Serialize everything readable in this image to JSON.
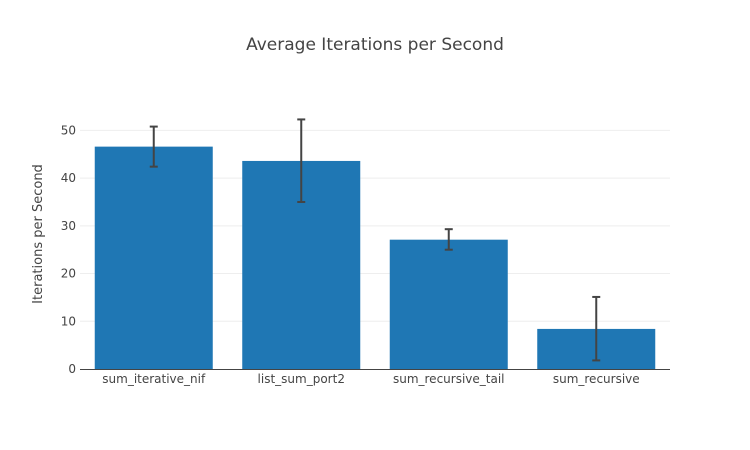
{
  "chart_data": {
    "type": "bar",
    "title": "Average Iterations per Second",
    "xlabel": "",
    "ylabel": "Iterations per Second",
    "categories": [
      "sum_iterative_nif",
      "list_sum_port2",
      "sum_recursive_tail",
      "sum_recursive"
    ],
    "values": [
      46.6,
      43.6,
      27.1,
      8.4
    ],
    "error_low": [
      42.4,
      35.0,
      25.0,
      1.8
    ],
    "error_high": [
      50.8,
      52.3,
      29.3,
      15.1
    ],
    "ylim": [
      0,
      57
    ],
    "yticks": [
      0,
      10,
      20,
      30,
      40,
      50
    ],
    "grid": true,
    "bar_color": "#1f77b4"
  }
}
